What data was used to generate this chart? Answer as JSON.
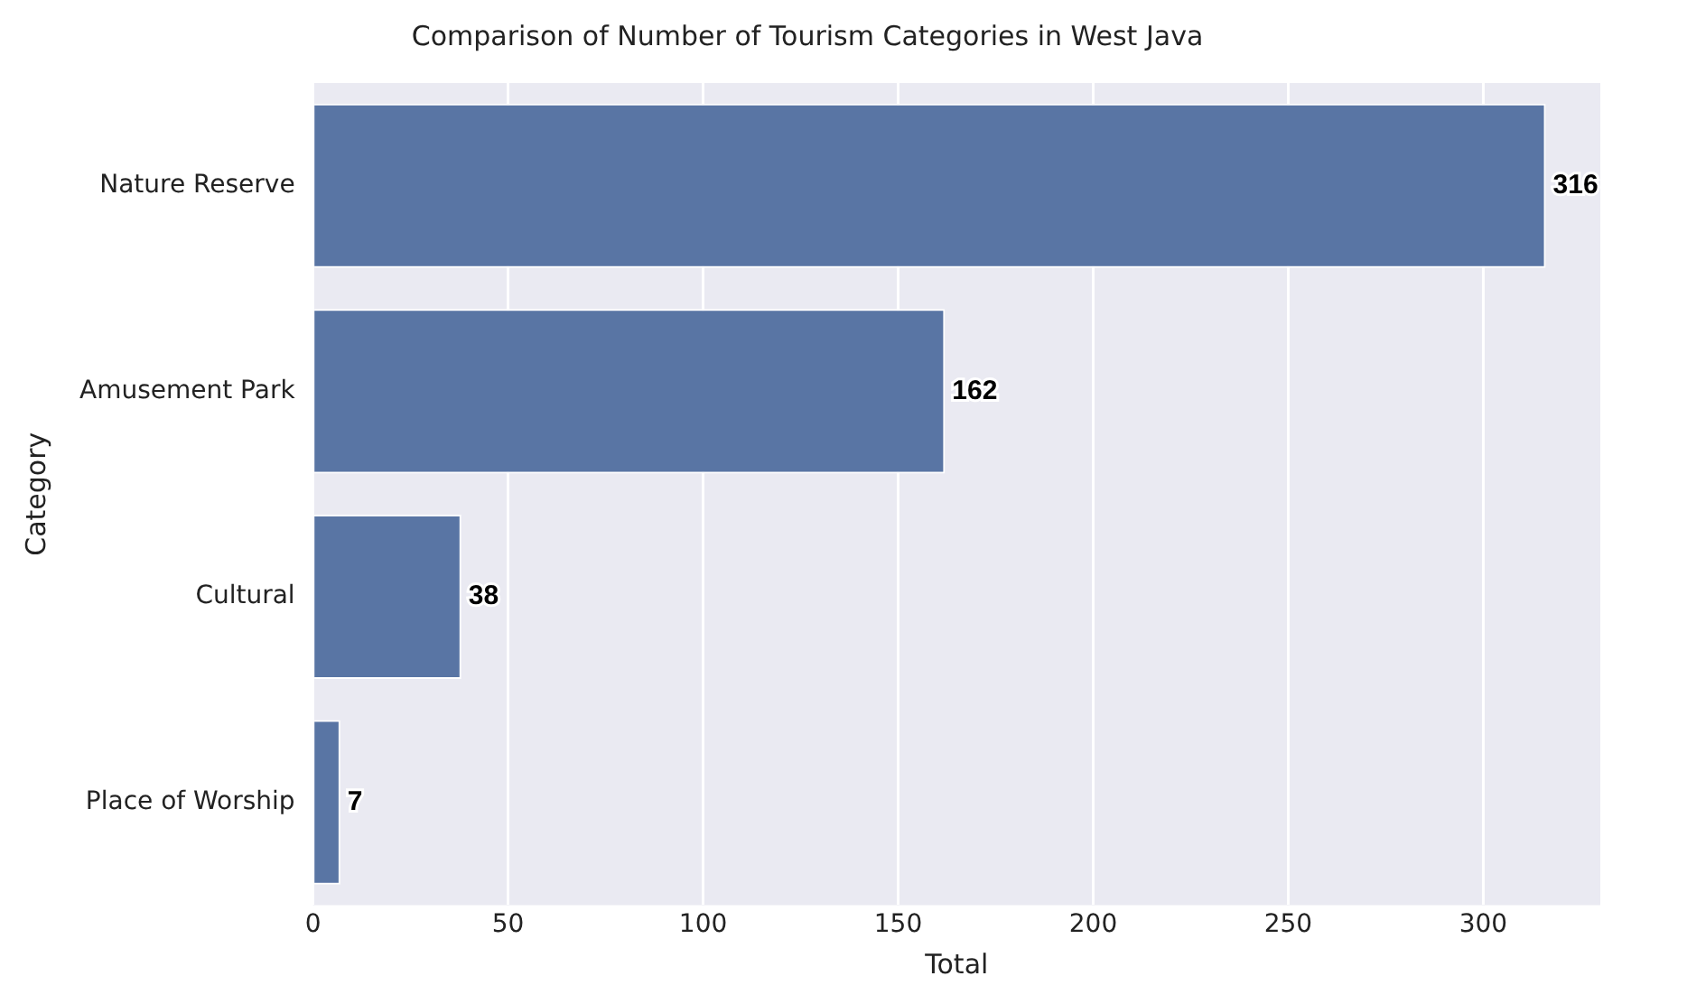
{
  "chart_data": {
    "type": "bar",
    "orientation": "horizontal",
    "title": "Comparison of Number of Tourism Categories in West Java",
    "xlabel": "Total",
    "ylabel": "Category",
    "categories": [
      "Nature Reserve",
      "Amusement Park",
      "Cultural",
      "Place of Worship"
    ],
    "values": [
      316,
      162,
      38,
      7
    ],
    "color": "#5975a4",
    "xlim": [
      0,
      330
    ],
    "xticks": [
      0,
      50,
      100,
      150,
      200,
      250,
      300
    ],
    "grid": "x",
    "data_labels": true,
    "legend": false
  }
}
